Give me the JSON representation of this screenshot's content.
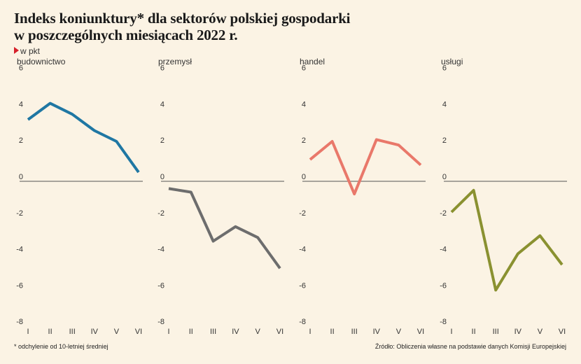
{
  "header": {
    "title_line1": "Indeks koniunktury* dla sektorów polskiej gospodarki",
    "title_line2": "w poszczególnych miesiącach 2022 r.",
    "unit": "w pkt"
  },
  "footer": {
    "footnote": "* odchylenie od 10-letniej średniej",
    "source": "Źródło: Obliczenia własne na podstawie danych Komisji Europejskiej"
  },
  "colors": {
    "background": "#fbf3e4",
    "unit_marker": "#d6202a",
    "zero_line": "#555555"
  },
  "chart_data": [
    {
      "type": "line",
      "title": "budownictwo",
      "categories": [
        "I",
        "II",
        "III",
        "IV",
        "V",
        "VI"
      ],
      "values": [
        3.4,
        4.3,
        3.7,
        2.8,
        2.2,
        0.5
      ],
      "yticks": [
        6,
        4,
        2,
        0,
        -2,
        -4,
        -6,
        -8
      ],
      "ylim": [
        -8,
        6
      ],
      "color": "#1f77a3"
    },
    {
      "type": "line",
      "title": "przemysł",
      "categories": [
        "I",
        "II",
        "III",
        "IV",
        "V",
        "VI"
      ],
      "values": [
        -0.4,
        -0.6,
        -3.3,
        -2.5,
        -3.1,
        -4.8
      ],
      "yticks": [
        6,
        4,
        2,
        0,
        -2,
        -4,
        -6,
        -8
      ],
      "ylim": [
        -8,
        6
      ],
      "color": "#6d6d6d"
    },
    {
      "type": "line",
      "title": "handel",
      "categories": [
        "I",
        "II",
        "III",
        "IV",
        "V",
        "VI"
      ],
      "values": [
        1.2,
        2.2,
        -0.7,
        2.3,
        2.0,
        0.9
      ],
      "yticks": [
        6,
        4,
        2,
        0,
        -2,
        -4,
        -6,
        -8
      ],
      "ylim": [
        -8,
        6
      ],
      "color": "#e9786a"
    },
    {
      "type": "line",
      "title": "usługi",
      "categories": [
        "I",
        "II",
        "III",
        "IV",
        "V",
        "VI"
      ],
      "values": [
        -1.7,
        -0.5,
        -6.0,
        -4.0,
        -3.0,
        -4.6
      ],
      "yticks": [
        6,
        4,
        2,
        0,
        -2,
        -4,
        -6,
        -8
      ],
      "ylim": [
        -8,
        6
      ],
      "color": "#8a9130"
    }
  ]
}
